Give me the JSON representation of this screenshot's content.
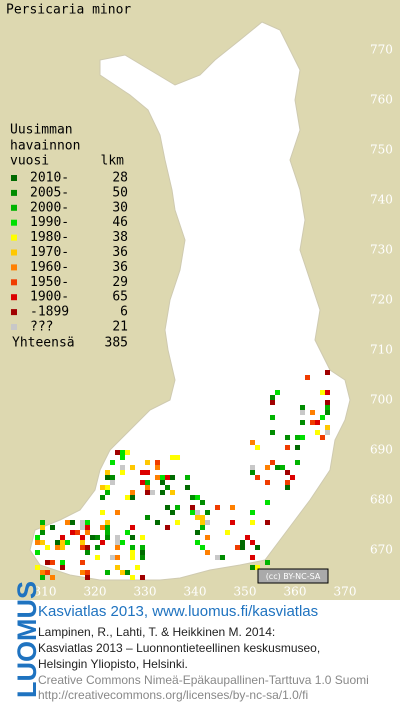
{
  "title": "Persicaria minor",
  "legend": {
    "header": [
      "Uusimman",
      "havainnon",
      "vuosi"
    ],
    "count_header": "lkm",
    "entries": [
      {
        "label": "2010-",
        "count": 28,
        "color": "#006a00"
      },
      {
        "label": "2005-",
        "count": 50,
        "color": "#008c00"
      },
      {
        "label": "2000-",
        "count": 30,
        "color": "#00b400"
      },
      {
        "label": "1990-",
        "count": 46,
        "color": "#00e000"
      },
      {
        "label": "1980-",
        "count": 38,
        "color": "#ffff00"
      },
      {
        "label": "1970-",
        "count": 36,
        "color": "#ffc800"
      },
      {
        "label": "1960-",
        "count": 36,
        "color": "#ff8000"
      },
      {
        "label": "1950-",
        "count": 29,
        "color": "#f03c00"
      },
      {
        "label": "1900-",
        "count": 65,
        "color": "#dc0000"
      },
      {
        "label": "-1899",
        "count": 6,
        "color": "#a00000"
      },
      {
        "label": "???",
        "count": 21,
        "color": "#c8c8c8"
      }
    ],
    "total": {
      "label": "Yhteensä",
      "count": 385
    }
  },
  "grid_labels": {
    "north": [
      770,
      760,
      750,
      740,
      730,
      720,
      710,
      700,
      690,
      680,
      670
    ],
    "east": [
      310,
      320,
      330,
      340,
      350,
      360,
      370
    ]
  },
  "license_badge": "(cc) BY-NC-SA",
  "footer": {
    "logo": "LUOMUS",
    "heading": "Kasviatlas 2013, www.luomus.fi/kasviatlas",
    "citation": [
      "Lampinen, R., Lahti, T. & Heikkinen M. 2014:",
      "Kasviatlas 2013 – Luonnontieteellinen keskusmuseo,",
      "Helsingin Yliopisto, Helsinki."
    ],
    "license": [
      "Creative Commons Nimeä-Epäkaupallinen-Tarttuva 1.0 Suomi",
      "http://creativecommons.org/licenses/by-nc-sa/1.0/fi"
    ]
  }
}
